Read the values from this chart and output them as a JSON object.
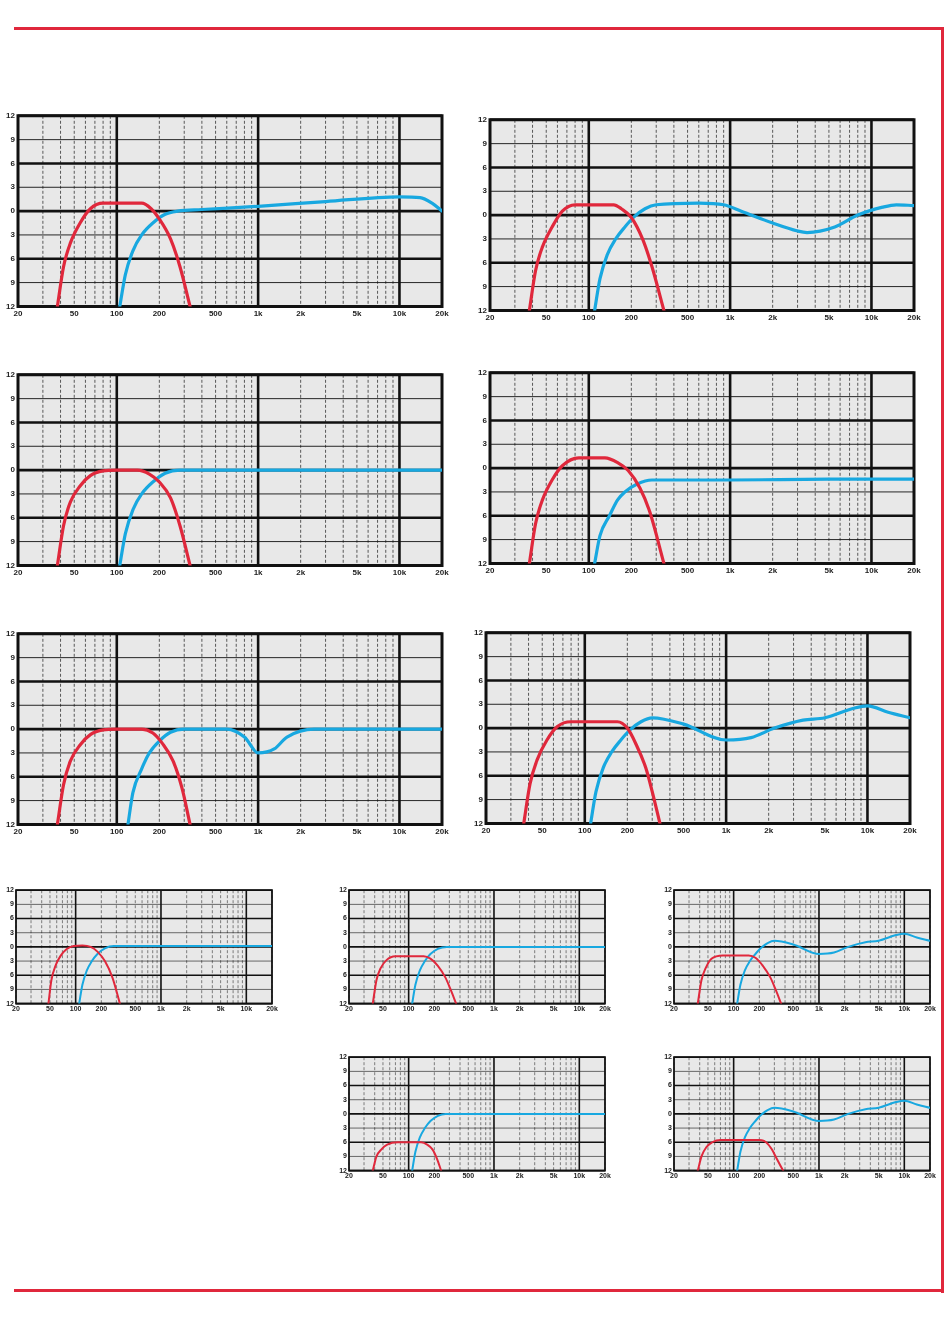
{
  "chart_data": [
    {
      "type": "line",
      "log": "x",
      "grid": true,
      "marker": "none",
      "line_style": "solid",
      "xlim": [
        20,
        20000
      ],
      "ylim": [
        -12,
        12
      ],
      "xticks": [
        20,
        {
          "value": 30,
          "label": null
        },
        {
          "value": 40,
          "label": null
        },
        50,
        {
          "value": 60,
          "label": null
        },
        {
          "value": 70,
          "label": null
        },
        {
          "value": 80,
          "label": null
        },
        {
          "value": 90,
          "label": null
        },
        100,
        200,
        {
          "value": 300,
          "label": null
        },
        {
          "value": 400,
          "label": null
        },
        500,
        {
          "value": 600,
          "label": null
        },
        {
          "value": 700,
          "label": null
        },
        {
          "value": 800,
          "label": null
        },
        {
          "value": 900,
          "label": null
        },
        {
          "value": 1000,
          "label": "1k"
        },
        {
          "value": 2000,
          "label": "2k"
        },
        {
          "value": 3000,
          "label": null
        },
        {
          "value": 4000,
          "label": null
        },
        {
          "value": 5000,
          "label": "5k"
        },
        {
          "value": 6000,
          "label": null
        },
        {
          "value": 7000,
          "label": null
        },
        {
          "value": 8000,
          "label": null
        },
        {
          "value": 9000,
          "label": null
        },
        {
          "value": 10000,
          "label": "10k"
        },
        {
          "value": 20000,
          "label": "20k"
        }
      ],
      "yticks": [
        12,
        9,
        6,
        3,
        0,
        {
          "value": -3,
          "label": "3"
        },
        {
          "value": -6,
          "label": "6"
        },
        {
          "value": -9,
          "label": "9"
        },
        {
          "value": -12,
          "label": "12"
        }
      ],
      "series": [
        {
          "color": "#e0283c",
          "x": [
            38,
            42,
            47,
            55,
            65,
            80,
            150,
            175,
            200,
            240,
            280,
            330
          ],
          "values": [
            -12,
            -7,
            -4,
            -1.5,
            0.3,
            1,
            1,
            0.3,
            -1,
            -3.5,
            -7,
            -12
          ]
        },
        {
          "color": "#18a8e0",
          "x": [
            105,
            115,
            130,
            150,
            180,
            220,
            270,
            400,
            1000,
            3000,
            10000,
            14000,
            17000,
            20000
          ],
          "values": [
            -12,
            -8,
            -5,
            -3,
            -1.5,
            -0.4,
            0,
            0.2,
            0.6,
            1.2,
            1.8,
            1.7,
            1,
            0
          ]
        }
      ]
    },
    {
      "type": "line",
      "log": "x",
      "grid": true,
      "marker": "none",
      "line_style": "solid",
      "xlim": [
        20,
        20000
      ],
      "ylim": [
        -12,
        12
      ],
      "xticks": [
        20,
        {
          "value": 30,
          "label": null
        },
        {
          "value": 40,
          "label": null
        },
        50,
        {
          "value": 60,
          "label": null
        },
        {
          "value": 70,
          "label": null
        },
        {
          "value": 80,
          "label": null
        },
        {
          "value": 90,
          "label": null
        },
        100,
        200,
        {
          "value": 300,
          "label": null
        },
        {
          "value": 400,
          "label": null
        },
        500,
        {
          "value": 600,
          "label": null
        },
        {
          "value": 700,
          "label": null
        },
        {
          "value": 800,
          "label": null
        },
        {
          "value": 900,
          "label": null
        },
        {
          "value": 1000,
          "label": "1k"
        },
        {
          "value": 2000,
          "label": "2k"
        },
        {
          "value": 3000,
          "label": null
        },
        {
          "value": 4000,
          "label": null
        },
        {
          "value": 5000,
          "label": "5k"
        },
        {
          "value": 6000,
          "label": null
        },
        {
          "value": 7000,
          "label": null
        },
        {
          "value": 8000,
          "label": null
        },
        {
          "value": 9000,
          "label": null
        },
        {
          "value": 10000,
          "label": "10k"
        },
        {
          "value": 20000,
          "label": "20k"
        }
      ],
      "yticks": [
        12,
        9,
        6,
        3,
        0,
        {
          "value": -3,
          "label": "3"
        },
        {
          "value": -6,
          "label": "6"
        },
        {
          "value": -9,
          "label": "9"
        },
        {
          "value": -12,
          "label": "12"
        }
      ],
      "series": [
        {
          "color": "#e0283c",
          "x": [
            38,
            42,
            47,
            55,
            65,
            80,
            150,
            170,
            200,
            240,
            280,
            340
          ],
          "values": [
            -12,
            -7,
            -4,
            -1.5,
            0.5,
            1.3,
            1.3,
            0.8,
            -0.3,
            -3,
            -6.5,
            -12
          ]
        },
        {
          "color": "#18a8e0",
          "x": [
            110,
            120,
            135,
            155,
            180,
            210,
            250,
            300,
            600,
            900,
            1200,
            2000,
            3000,
            3500,
            5500,
            8000,
            12000,
            15000,
            20000
          ],
          "values": [
            -12,
            -8,
            -5,
            -3,
            -1.5,
            -0.2,
            0.8,
            1.3,
            1.5,
            1.3,
            0.5,
            -1,
            -2,
            -2.2,
            -1.5,
            0,
            1,
            1.3,
            1.2
          ]
        }
      ]
    },
    {
      "type": "line",
      "log": "x",
      "grid": true,
      "marker": "none",
      "line_style": "solid",
      "xlim": [
        20,
        20000
      ],
      "ylim": [
        -12,
        12
      ],
      "xticks": [
        20,
        {
          "value": 30,
          "label": null
        },
        {
          "value": 40,
          "label": null
        },
        50,
        {
          "value": 60,
          "label": null
        },
        {
          "value": 70,
          "label": null
        },
        {
          "value": 80,
          "label": null
        },
        {
          "value": 90,
          "label": null
        },
        100,
        200,
        {
          "value": 300,
          "label": null
        },
        {
          "value": 400,
          "label": null
        },
        500,
        {
          "value": 600,
          "label": null
        },
        {
          "value": 700,
          "label": null
        },
        {
          "value": 800,
          "label": null
        },
        {
          "value": 900,
          "label": null
        },
        {
          "value": 1000,
          "label": "1k"
        },
        {
          "value": 2000,
          "label": "2k"
        },
        {
          "value": 3000,
          "label": null
        },
        {
          "value": 4000,
          "label": null
        },
        {
          "value": 5000,
          "label": "5k"
        },
        {
          "value": 6000,
          "label": null
        },
        {
          "value": 7000,
          "label": null
        },
        {
          "value": 8000,
          "label": null
        },
        {
          "value": 9000,
          "label": null
        },
        {
          "value": 10000,
          "label": "10k"
        },
        {
          "value": 20000,
          "label": "20k"
        }
      ],
      "yticks": [
        12,
        9,
        6,
        3,
        0,
        {
          "value": -3,
          "label": "3"
        },
        {
          "value": -6,
          "label": "6"
        },
        {
          "value": -9,
          "label": "9"
        },
        {
          "value": -12,
          "label": "12"
        }
      ],
      "series": [
        {
          "color": "#e0283c",
          "x": [
            38,
            42,
            47,
            55,
            65,
            80,
            100,
            140,
            170,
            200,
            240,
            280,
            330
          ],
          "values": [
            -12,
            -7,
            -4,
            -2,
            -0.7,
            -0.1,
            0,
            0,
            -0.5,
            -1.5,
            -3.5,
            -7,
            -12
          ]
        },
        {
          "color": "#18a8e0",
          "x": [
            105,
            115,
            130,
            150,
            180,
            220,
            280,
            400,
            1000,
            5000,
            20000
          ],
          "values": [
            -12,
            -8,
            -5,
            -3,
            -1.5,
            -0.4,
            0,
            0,
            0,
            0,
            0
          ]
        }
      ]
    },
    {
      "type": "line",
      "log": "x",
      "grid": true,
      "marker": "none",
      "line_style": "solid",
      "xlim": [
        20,
        20000
      ],
      "ylim": [
        -12,
        12
      ],
      "xticks": [
        20,
        {
          "value": 30,
          "label": null
        },
        {
          "value": 40,
          "label": null
        },
        50,
        {
          "value": 60,
          "label": null
        },
        {
          "value": 70,
          "label": null
        },
        {
          "value": 80,
          "label": null
        },
        {
          "value": 90,
          "label": null
        },
        100,
        200,
        {
          "value": 300,
          "label": null
        },
        {
          "value": 400,
          "label": null
        },
        500,
        {
          "value": 600,
          "label": null
        },
        {
          "value": 700,
          "label": null
        },
        {
          "value": 800,
          "label": null
        },
        {
          "value": 900,
          "label": null
        },
        {
          "value": 1000,
          "label": "1k"
        },
        {
          "value": 2000,
          "label": "2k"
        },
        {
          "value": 3000,
          "label": null
        },
        {
          "value": 4000,
          "label": null
        },
        {
          "value": 5000,
          "label": "5k"
        },
        {
          "value": 6000,
          "label": null
        },
        {
          "value": 7000,
          "label": null
        },
        {
          "value": 8000,
          "label": null
        },
        {
          "value": 9000,
          "label": null
        },
        {
          "value": 10000,
          "label": "10k"
        },
        {
          "value": 20000,
          "label": "20k"
        }
      ],
      "yticks": [
        12,
        9,
        6,
        3,
        0,
        {
          "value": -3,
          "label": "3"
        },
        {
          "value": -6,
          "label": "6"
        },
        {
          "value": -9,
          "label": "9"
        },
        {
          "value": -12,
          "label": "12"
        }
      ],
      "series": [
        {
          "color": "#e0283c",
          "x": [
            38,
            42,
            47,
            55,
            65,
            85,
            130,
            160,
            190,
            230,
            270,
            340
          ],
          "values": [
            -12,
            -7,
            -4,
            -1.5,
            0.3,
            1.3,
            1.3,
            0.7,
            -0.3,
            -2.5,
            -5.5,
            -12
          ]
        },
        {
          "color": "#18a8e0",
          "x": [
            110,
            120,
            140,
            160,
            180,
            220,
            280,
            400,
            1000,
            5000,
            20000
          ],
          "values": [
            -12,
            -8.5,
            -6,
            -4,
            -3,
            -2,
            -1.5,
            -1.5,
            -1.5,
            -1.4,
            -1.4
          ]
        }
      ]
    },
    {
      "type": "line",
      "log": "x",
      "grid": true,
      "marker": "none",
      "line_style": "solid",
      "xlim": [
        20,
        20000
      ],
      "ylim": [
        -12,
        12
      ],
      "xticks": [
        20,
        {
          "value": 30,
          "label": null
        },
        {
          "value": 40,
          "label": null
        },
        50,
        {
          "value": 60,
          "label": null
        },
        {
          "value": 70,
          "label": null
        },
        {
          "value": 80,
          "label": null
        },
        {
          "value": 90,
          "label": null
        },
        100,
        200,
        {
          "value": 300,
          "label": null
        },
        {
          "value": 400,
          "label": null
        },
        500,
        {
          "value": 600,
          "label": null
        },
        {
          "value": 700,
          "label": null
        },
        {
          "value": 800,
          "label": null
        },
        {
          "value": 900,
          "label": null
        },
        {
          "value": 1000,
          "label": "1k"
        },
        {
          "value": 2000,
          "label": "2k"
        },
        {
          "value": 3000,
          "label": null
        },
        {
          "value": 4000,
          "label": null
        },
        {
          "value": 5000,
          "label": "5k"
        },
        {
          "value": 6000,
          "label": null
        },
        {
          "value": 7000,
          "label": null
        },
        {
          "value": 8000,
          "label": null
        },
        {
          "value": 9000,
          "label": null
        },
        {
          "value": 10000,
          "label": "10k"
        },
        {
          "value": 20000,
          "label": "20k"
        }
      ],
      "yticks": [
        12,
        9,
        6,
        3,
        0,
        {
          "value": -3,
          "label": "3"
        },
        {
          "value": -6,
          "label": "6"
        },
        {
          "value": -9,
          "label": "9"
        },
        {
          "value": -12,
          "label": "12"
        }
      ],
      "series": [
        {
          "color": "#e0283c",
          "x": [
            38,
            42,
            47,
            55,
            65,
            80,
            100,
            150,
            180,
            210,
            250,
            290,
            330
          ],
          "values": [
            -12,
            -7,
            -4,
            -2,
            -0.7,
            -0.1,
            0,
            0,
            -0.5,
            -1.8,
            -4,
            -7.5,
            -12
          ]
        },
        {
          "color": "#18a8e0",
          "x": [
            120,
            130,
            150,
            170,
            200,
            240,
            300,
            600,
            800,
            1000,
            1300,
            1600,
            2500,
            5000,
            20000
          ],
          "values": [
            -12,
            -8,
            -5,
            -3,
            -1.5,
            -0.4,
            0,
            0,
            -1,
            -3,
            -2.5,
            -1,
            0,
            0,
            0
          ]
        }
      ]
    },
    {
      "type": "line",
      "log": "x",
      "grid": true,
      "marker": "none",
      "line_style": "solid",
      "xlim": [
        20,
        20000
      ],
      "ylim": [
        -12,
        12
      ],
      "xticks": [
        20,
        {
          "value": 30,
          "label": null
        },
        {
          "value": 40,
          "label": null
        },
        50,
        {
          "value": 60,
          "label": null
        },
        {
          "value": 70,
          "label": null
        },
        {
          "value": 80,
          "label": null
        },
        {
          "value": 90,
          "label": null
        },
        100,
        200,
        {
          "value": 300,
          "label": null
        },
        {
          "value": 400,
          "label": null
        },
        500,
        {
          "value": 600,
          "label": null
        },
        {
          "value": 700,
          "label": null
        },
        {
          "value": 800,
          "label": null
        },
        {
          "value": 900,
          "label": null
        },
        {
          "value": 1000,
          "label": "1k"
        },
        {
          "value": 2000,
          "label": "2k"
        },
        {
          "value": 3000,
          "label": null
        },
        {
          "value": 4000,
          "label": null
        },
        {
          "value": 5000,
          "label": "5k"
        },
        {
          "value": 6000,
          "label": null
        },
        {
          "value": 7000,
          "label": null
        },
        {
          "value": 8000,
          "label": null
        },
        {
          "value": 9000,
          "label": null
        },
        {
          "value": 10000,
          "label": "10k"
        },
        {
          "value": 20000,
          "label": "20k"
        }
      ],
      "yticks": [
        12,
        9,
        6,
        3,
        0,
        {
          "value": -3,
          "label": "3"
        },
        {
          "value": -6,
          "label": "6"
        },
        {
          "value": -9,
          "label": "9"
        },
        {
          "value": -12,
          "label": "12"
        }
      ],
      "series": [
        {
          "color": "#e0283c",
          "x": [
            37,
            41,
            46,
            54,
            64,
            80,
            170,
            200,
            230,
            270,
            300,
            340
          ],
          "values": [
            -12,
            -7,
            -4,
            -1.5,
            0.2,
            0.8,
            0.8,
            0,
            -2,
            -5,
            -8,
            -12
          ]
        },
        {
          "color": "#18a8e0",
          "x": [
            110,
            120,
            135,
            155,
            180,
            210,
            250,
            300,
            500,
            1000,
            1500,
            2200,
            3500,
            5000,
            8000,
            10000,
            14000,
            20000
          ],
          "values": [
            -12,
            -8,
            -5,
            -3,
            -1.5,
            -0.2,
            0.8,
            1.3,
            0.5,
            -1.5,
            -1.2,
            0,
            1,
            1.3,
            2.5,
            2.8,
            2,
            1.3
          ]
        }
      ]
    },
    {
      "type": "line",
      "log": "x",
      "grid": true,
      "marker": "none",
      "line_style": "solid",
      "xlim": [
        20,
        20000
      ],
      "ylim": [
        -12,
        12
      ],
      "xticks": [
        20,
        {
          "value": 30,
          "label": null
        },
        {
          "value": 40,
          "label": null
        },
        50,
        {
          "value": 60,
          "label": null
        },
        {
          "value": 70,
          "label": null
        },
        {
          "value": 80,
          "label": null
        },
        {
          "value": 90,
          "label": null
        },
        100,
        200,
        {
          "value": 300,
          "label": null
        },
        {
          "value": 400,
          "label": null
        },
        500,
        {
          "value": 600,
          "label": null
        },
        {
          "value": 700,
          "label": null
        },
        {
          "value": 800,
          "label": null
        },
        {
          "value": 900,
          "label": null
        },
        {
          "value": 1000,
          "label": "1k"
        },
        {
          "value": 2000,
          "label": "2k"
        },
        {
          "value": 3000,
          "label": null
        },
        {
          "value": 4000,
          "label": null
        },
        {
          "value": 5000,
          "label": "5k"
        },
        {
          "value": 6000,
          "label": null
        },
        {
          "value": 7000,
          "label": null
        },
        {
          "value": 8000,
          "label": null
        },
        {
          "value": 9000,
          "label": null
        },
        {
          "value": 10000,
          "label": "10k"
        },
        {
          "value": 20000,
          "label": "20k"
        }
      ],
      "yticks": [
        12,
        9,
        6,
        3,
        0,
        {
          "value": -3,
          "label": "3"
        },
        {
          "value": -6,
          "label": "6"
        },
        {
          "value": -9,
          "label": "9"
        },
        {
          "value": -12,
          "label": "12"
        }
      ],
      "series": [
        {
          "color": "#e0283c",
          "x": [
            48,
            52,
            58,
            66,
            78,
            95,
            120,
            150,
            180,
            220,
            270,
            330
          ],
          "values": [
            -12,
            -7,
            -4,
            -2,
            -0.5,
            0.2,
            0.3,
            0,
            -1,
            -3,
            -6.5,
            -12
          ]
        },
        {
          "color": "#18a8e0",
          "x": [
            110,
            120,
            135,
            155,
            180,
            220,
            280,
            400,
            1000,
            5000,
            20000
          ],
          "values": [
            -12,
            -8,
            -5,
            -3,
            -1.5,
            -0.3,
            0.2,
            0.2,
            0.2,
            0.2,
            0.2
          ]
        }
      ]
    },
    {
      "type": "line",
      "log": "x",
      "grid": true,
      "marker": "none",
      "line_style": "solid",
      "xlim": [
        20,
        20000
      ],
      "ylim": [
        -12,
        12
      ],
      "xticks": [
        20,
        {
          "value": 30,
          "label": null
        },
        {
          "value": 40,
          "label": null
        },
        50,
        {
          "value": 60,
          "label": null
        },
        {
          "value": 70,
          "label": null
        },
        {
          "value": 80,
          "label": null
        },
        {
          "value": 90,
          "label": null
        },
        100,
        200,
        {
          "value": 300,
          "label": null
        },
        {
          "value": 400,
          "label": null
        },
        500,
        {
          "value": 600,
          "label": null
        },
        {
          "value": 700,
          "label": null
        },
        {
          "value": 800,
          "label": null
        },
        {
          "value": 900,
          "label": null
        },
        {
          "value": 1000,
          "label": "1k"
        },
        {
          "value": 2000,
          "label": "2k"
        },
        {
          "value": 3000,
          "label": null
        },
        {
          "value": 4000,
          "label": null
        },
        {
          "value": 5000,
          "label": "5k"
        },
        {
          "value": 6000,
          "label": null
        },
        {
          "value": 7000,
          "label": null
        },
        {
          "value": 8000,
          "label": null
        },
        {
          "value": 9000,
          "label": null
        },
        {
          "value": 10000,
          "label": "10k"
        },
        {
          "value": 20000,
          "label": "20k"
        }
      ],
      "yticks": [
        12,
        9,
        6,
        3,
        0,
        {
          "value": -3,
          "label": "3"
        },
        {
          "value": -6,
          "label": "6"
        },
        {
          "value": -9,
          "label": "9"
        },
        {
          "value": -12,
          "label": "12"
        }
      ],
      "series": [
        {
          "color": "#e0283c",
          "x": [
            38,
            42,
            47,
            55,
            70,
            150,
            180,
            220,
            270,
            310,
            360
          ],
          "values": [
            -12,
            -7,
            -4.5,
            -2.8,
            -2,
            -2,
            -2.5,
            -4,
            -6.5,
            -9,
            -12
          ]
        },
        {
          "color": "#18a8e0",
          "x": [
            110,
            120,
            135,
            155,
            180,
            220,
            280,
            400,
            1000,
            5000,
            20000
          ],
          "values": [
            -12,
            -8,
            -5,
            -3,
            -1.5,
            -0.4,
            0,
            0,
            0,
            0,
            0
          ]
        }
      ]
    },
    {
      "type": "line",
      "log": "x",
      "grid": true,
      "marker": "none",
      "line_style": "solid",
      "xlim": [
        20,
        20000
      ],
      "ylim": [
        -12,
        12
      ],
      "xticks": [
        20,
        {
          "value": 30,
          "label": null
        },
        {
          "value": 40,
          "label": null
        },
        50,
        {
          "value": 60,
          "label": null
        },
        {
          "value": 70,
          "label": null
        },
        {
          "value": 80,
          "label": null
        },
        {
          "value": 90,
          "label": null
        },
        100,
        200,
        {
          "value": 300,
          "label": null
        },
        {
          "value": 400,
          "label": null
        },
        500,
        {
          "value": 600,
          "label": null
        },
        {
          "value": 700,
          "label": null
        },
        {
          "value": 800,
          "label": null
        },
        {
          "value": 900,
          "label": null
        },
        {
          "value": 1000,
          "label": "1k"
        },
        {
          "value": 2000,
          "label": "2k"
        },
        {
          "value": 3000,
          "label": null
        },
        {
          "value": 4000,
          "label": null
        },
        {
          "value": 5000,
          "label": "5k"
        },
        {
          "value": 6000,
          "label": null
        },
        {
          "value": 7000,
          "label": null
        },
        {
          "value": 8000,
          "label": null
        },
        {
          "value": 9000,
          "label": null
        },
        {
          "value": 10000,
          "label": "10k"
        },
        {
          "value": 20000,
          "label": "20k"
        }
      ],
      "yticks": [
        12,
        9,
        6,
        3,
        0,
        {
          "value": -3,
          "label": "3"
        },
        {
          "value": -6,
          "label": "6"
        },
        {
          "value": -9,
          "label": "9"
        },
        {
          "value": -12,
          "label": "12"
        }
      ],
      "series": [
        {
          "color": "#e0283c",
          "x": [
            38,
            42,
            47,
            55,
            75,
            150,
            180,
            220,
            270,
            310,
            360
          ],
          "values": [
            -12,
            -7,
            -4.5,
            -2.5,
            -1.8,
            -1.8,
            -2.3,
            -4,
            -6.5,
            -9,
            -12
          ]
        },
        {
          "color": "#18a8e0",
          "x": [
            110,
            120,
            135,
            155,
            180,
            210,
            250,
            300,
            500,
            1000,
            1500,
            2200,
            3500,
            5000,
            8000,
            10000,
            14000,
            20000
          ],
          "values": [
            -12,
            -8,
            -5,
            -3,
            -1.5,
            -0.2,
            0.8,
            1.3,
            0.5,
            -1.5,
            -1.2,
            0,
            1,
            1.3,
            2.5,
            2.8,
            2,
            1.3
          ]
        }
      ]
    },
    {
      "type": "line",
      "log": "x",
      "grid": true,
      "marker": "none",
      "line_style": "solid",
      "xlim": [
        20,
        20000
      ],
      "ylim": [
        -12,
        12
      ],
      "xticks": [
        20,
        {
          "value": 30,
          "label": null
        },
        {
          "value": 40,
          "label": null
        },
        50,
        {
          "value": 60,
          "label": null
        },
        {
          "value": 70,
          "label": null
        },
        {
          "value": 80,
          "label": null
        },
        {
          "value": 90,
          "label": null
        },
        100,
        200,
        {
          "value": 300,
          "label": null
        },
        {
          "value": 400,
          "label": null
        },
        500,
        {
          "value": 600,
          "label": null
        },
        {
          "value": 700,
          "label": null
        },
        {
          "value": 800,
          "label": null
        },
        {
          "value": 900,
          "label": null
        },
        {
          "value": 1000,
          "label": "1k"
        },
        {
          "value": 2000,
          "label": "2k"
        },
        {
          "value": 3000,
          "label": null
        },
        {
          "value": 4000,
          "label": null
        },
        {
          "value": 5000,
          "label": "5k"
        },
        {
          "value": 6000,
          "label": null
        },
        {
          "value": 7000,
          "label": null
        },
        {
          "value": 8000,
          "label": null
        },
        {
          "value": 9000,
          "label": null
        },
        {
          "value": 10000,
          "label": "10k"
        },
        {
          "value": 20000,
          "label": "20k"
        }
      ],
      "yticks": [
        12,
        9,
        6,
        3,
        0,
        {
          "value": -3,
          "label": "3"
        },
        {
          "value": -6,
          "label": "6"
        },
        {
          "value": -9,
          "label": "9"
        },
        {
          "value": -12,
          "label": "12"
        }
      ],
      "series": [
        {
          "color": "#e0283c",
          "x": [
            38,
            42,
            48,
            56,
            75,
            140,
            165,
            190,
            215,
            240
          ],
          "values": [
            -12,
            -9,
            -7.5,
            -6.5,
            -6,
            -6,
            -6.5,
            -7.5,
            -9.5,
            -12
          ]
        },
        {
          "color": "#18a8e0",
          "x": [
            110,
            120,
            135,
            155,
            180,
            220,
            270,
            400,
            1000,
            5000,
            20000
          ],
          "values": [
            -12,
            -8,
            -5,
            -3,
            -1.5,
            -0.4,
            0,
            0,
            0,
            0,
            0
          ]
        }
      ]
    },
    {
      "type": "line",
      "log": "x",
      "grid": true,
      "marker": "none",
      "line_style": "solid",
      "xlim": [
        20,
        20000
      ],
      "ylim": [
        -12,
        12
      ],
      "xticks": [
        20,
        {
          "value": 30,
          "label": null
        },
        {
          "value": 40,
          "label": null
        },
        50,
        {
          "value": 60,
          "label": null
        },
        {
          "value": 70,
          "label": null
        },
        {
          "value": 80,
          "label": null
        },
        {
          "value": 90,
          "label": null
        },
        100,
        200,
        {
          "value": 300,
          "label": null
        },
        {
          "value": 400,
          "label": null
        },
        500,
        {
          "value": 600,
          "label": null
        },
        {
          "value": 700,
          "label": null
        },
        {
          "value": 800,
          "label": null
        },
        {
          "value": 900,
          "label": null
        },
        {
          "value": 1000,
          "label": "1k"
        },
        {
          "value": 2000,
          "label": "2k"
        },
        {
          "value": 3000,
          "label": null
        },
        {
          "value": 4000,
          "label": null
        },
        {
          "value": 5000,
          "label": "5k"
        },
        {
          "value": 6000,
          "label": null
        },
        {
          "value": 7000,
          "label": null
        },
        {
          "value": 8000,
          "label": null
        },
        {
          "value": 9000,
          "label": null
        },
        {
          "value": 10000,
          "label": "10k"
        },
        {
          "value": 20000,
          "label": "20k"
        }
      ],
      "yticks": [
        12,
        9,
        6,
        3,
        0,
        {
          "value": -3,
          "label": "3"
        },
        {
          "value": -6,
          "label": "6"
        },
        {
          "value": -9,
          "label": "9"
        },
        {
          "value": -12,
          "label": "12"
        }
      ],
      "series": [
        {
          "color": "#e0283c",
          "x": [
            38,
            42,
            48,
            56,
            70,
            200,
            240,
            280,
            320,
            380
          ],
          "values": [
            -12,
            -9,
            -7,
            -6,
            -5.5,
            -5.5,
            -6,
            -7.5,
            -9.5,
            -12
          ]
        },
        {
          "color": "#18a8e0",
          "x": [
            110,
            120,
            135,
            155,
            180,
            210,
            250,
            300,
            500,
            1000,
            1500,
            2200,
            3500,
            5000,
            8000,
            10000,
            14000,
            20000
          ],
          "values": [
            -12,
            -8,
            -5,
            -3,
            -1.5,
            -0.2,
            0.8,
            1.3,
            0.5,
            -1.5,
            -1.2,
            0,
            1,
            1.3,
            2.5,
            2.8,
            2,
            1.3
          ]
        }
      ]
    }
  ]
}
